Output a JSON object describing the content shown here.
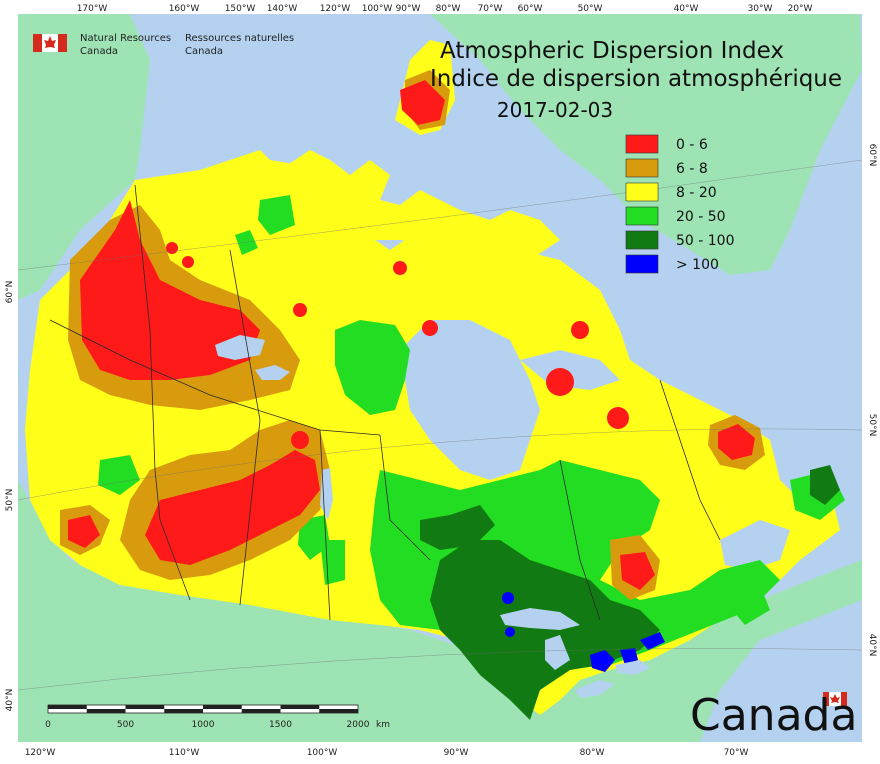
{
  "agency": {
    "name_en_line1": "Natural Resources",
    "name_en_line2": "Canada",
    "name_fr_line1": "Ressources naturelles",
    "name_fr_line2": "Canada"
  },
  "map": {
    "title_en": "Atmospheric Dispersion Index",
    "title_fr": "Indice de dispersion atmosphérique",
    "date": "2017-02-03"
  },
  "legend": [
    {
      "label": "0 - 6",
      "color": "#ff1a1a"
    },
    {
      "label": "6 - 8",
      "color": "#d89b0e"
    },
    {
      "label": "8 - 20",
      "color": "#ffff1a"
    },
    {
      "label": "20 - 50",
      "color": "#22dd22"
    },
    {
      "label": "50 - 100",
      "color": "#127a12"
    },
    {
      "label": "> 100",
      "color": "#0000ff"
    }
  ],
  "top_longitudes": [
    "170°W",
    "160°W",
    "150°W",
    "140°W",
    "120°W",
    "100°W",
    "90°W",
    "80°W",
    "70°W",
    "60°W",
    "50°W",
    "40°W",
    "30°W",
    "20°W"
  ],
  "bottom_longitudes": [
    "120°W",
    "110°W",
    "100°W",
    "90°W",
    "80°W",
    "70°W"
  ],
  "left_latitudes": [
    "60°N",
    "50°N",
    "40°N"
  ],
  "right_latitudes": [
    "60°N",
    "50°N",
    "40°N"
  ],
  "scale_bar": {
    "ticks": [
      "0",
      "500",
      "1000",
      "1500",
      "2000"
    ],
    "unit": "km"
  },
  "wordmark": "Canada",
  "colors": {
    "ocean": "#b4d2f0",
    "foreign_land": "#9ee3b4",
    "border": "#2a2a2a"
  }
}
